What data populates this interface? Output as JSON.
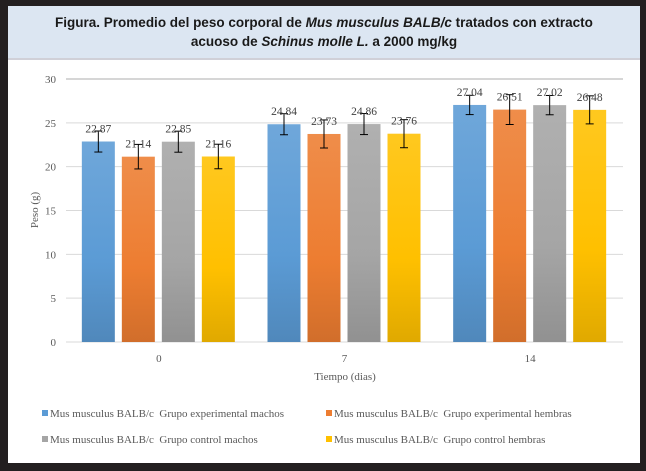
{
  "title": {
    "part1": "Figura. Promedio del peso corporal de ",
    "italic1": "Mus musculus BALB/c",
    "part2": " tratados con extracto",
    "part3": "acuoso de ",
    "italic2": "Schinus molle L.",
    "part4": " a 2000 mg/kg"
  },
  "chart_data": {
    "type": "bar",
    "title": "Figura. Promedio del peso corporal de Mus musculus BALB/c tratados con extracto acuoso de Schinus molle L. a 2000 mg/kg",
    "xlabel": "Tiempo (dias)",
    "ylabel": "Peso (g)",
    "ylim": [
      0,
      30
    ],
    "yticks": [
      0,
      5,
      10,
      15,
      20,
      25,
      30
    ],
    "grid": true,
    "legend_position": "bottom",
    "categories": [
      "0",
      "7",
      "14"
    ],
    "series": [
      {
        "name": "Mus musculus BALB/c  Grupo experimental machos",
        "color": "#5b9bd5",
        "values": [
          22.87,
          24.84,
          27.04
        ],
        "error": [
          1.2,
          1.2,
          1.1
        ]
      },
      {
        "name": "Mus musculus BALB/c  Grupo experimental hembras",
        "color": "#ed7d31",
        "values": [
          21.14,
          23.73,
          26.51
        ],
        "error": [
          1.4,
          1.6,
          1.7
        ]
      },
      {
        "name": "Mus musculus BALB/c  Grupo control machos",
        "color": "#a5a5a5",
        "values": [
          22.85,
          24.86,
          27.02
        ],
        "error": [
          1.2,
          1.2,
          1.1
        ]
      },
      {
        "name": "Mus musculus BALB/c  Grupo control hembras",
        "color": "#ffc000",
        "values": [
          21.16,
          23.76,
          26.48
        ],
        "error": [
          1.4,
          1.6,
          1.6
        ]
      }
    ]
  }
}
